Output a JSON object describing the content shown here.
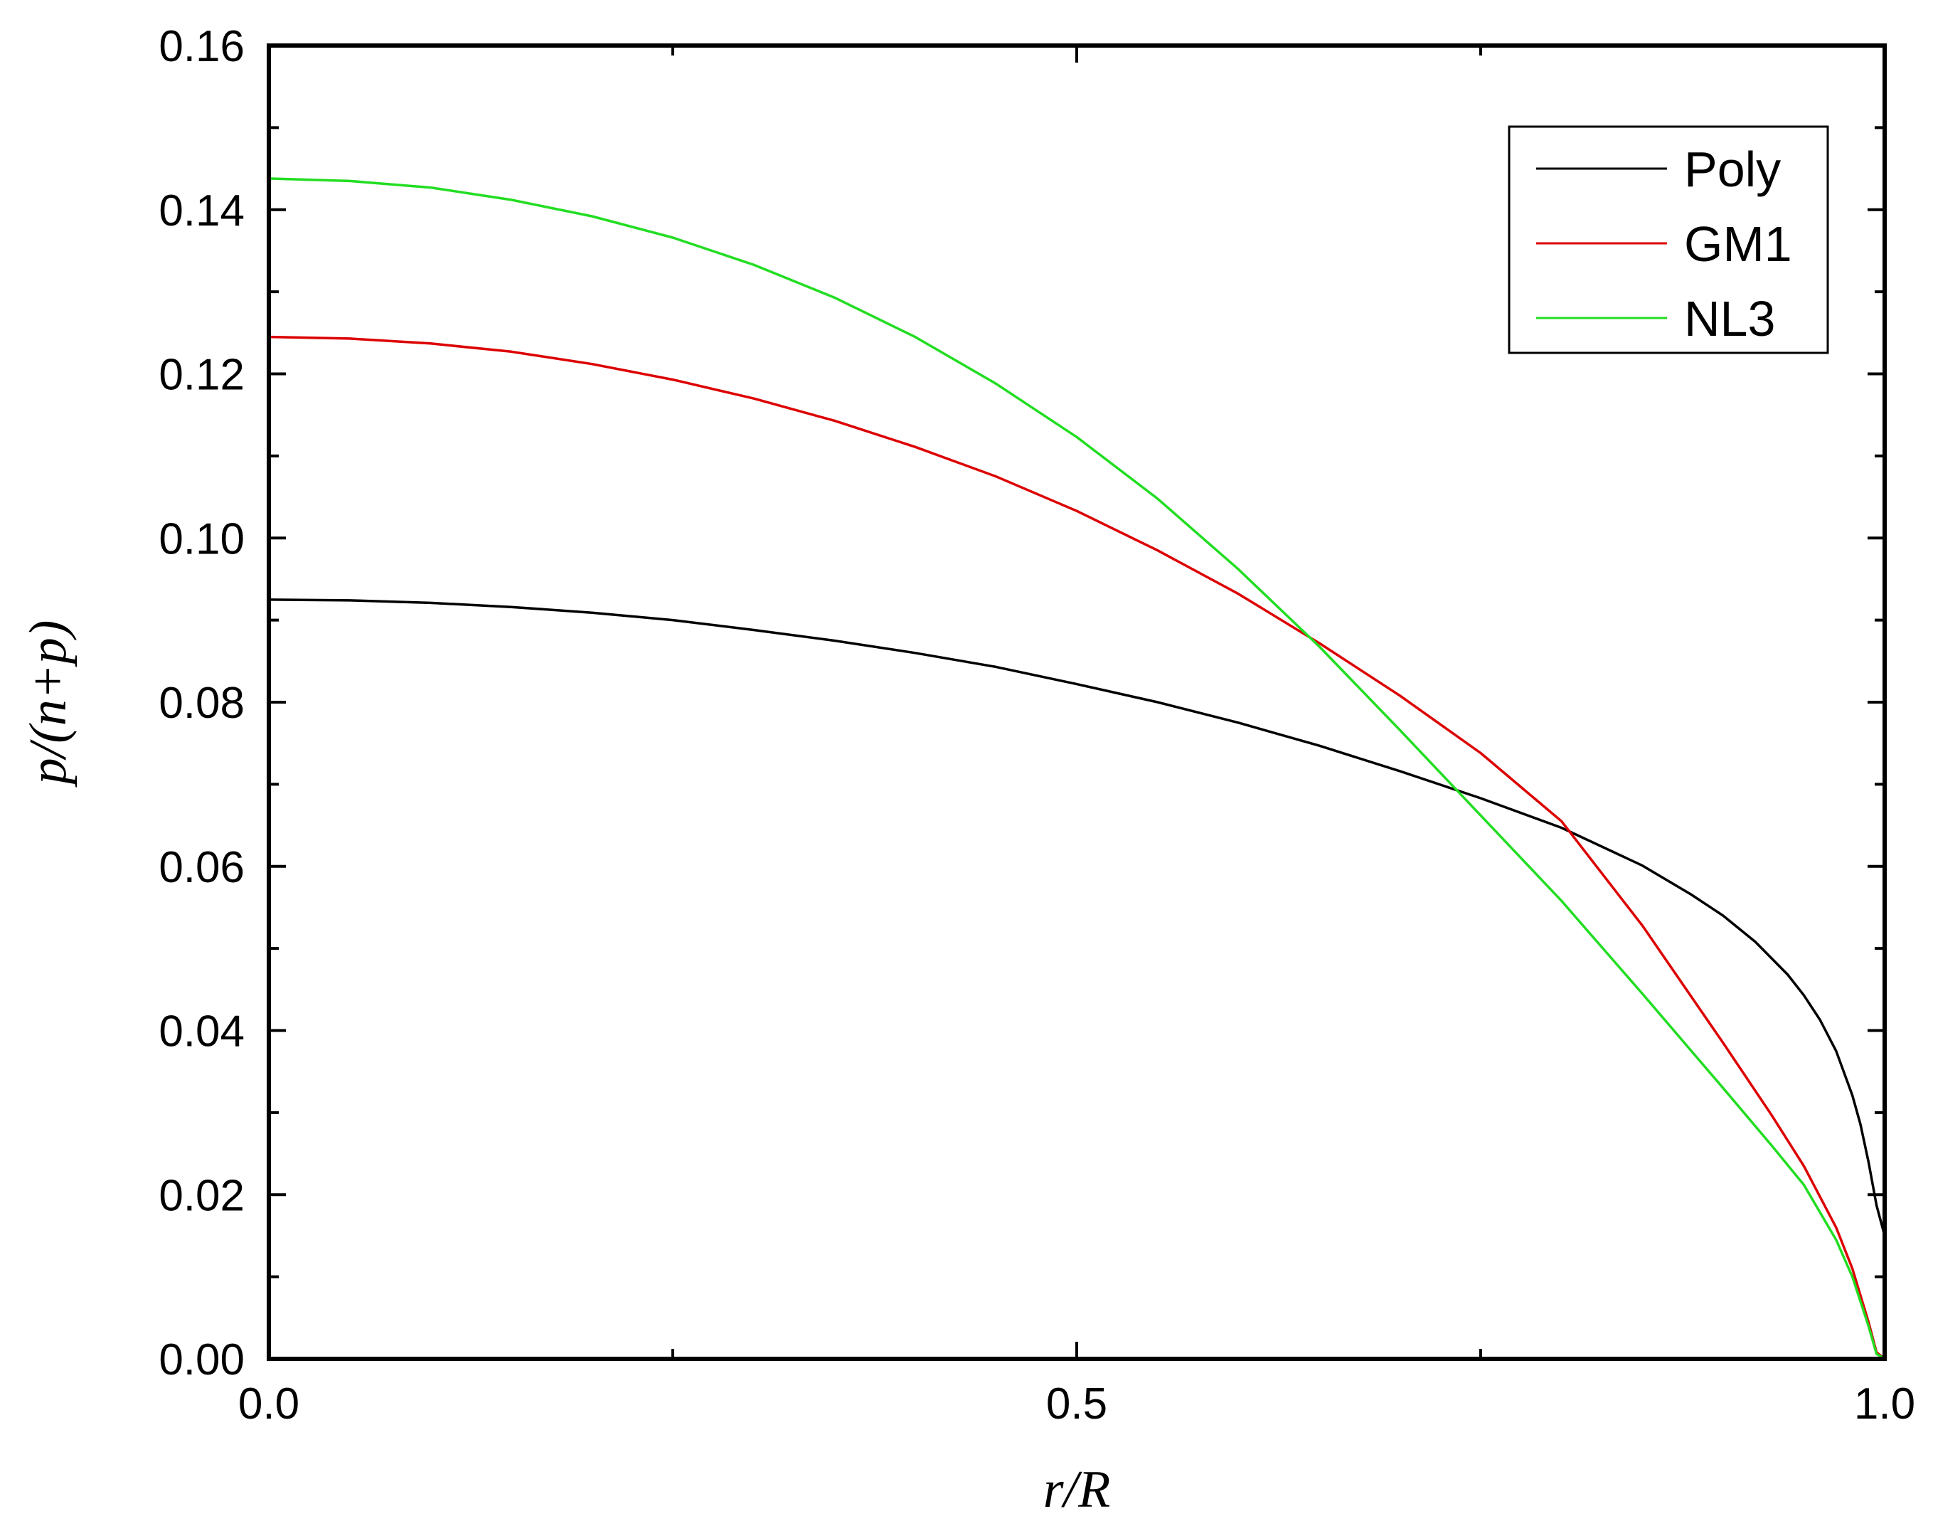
{
  "chart_data": {
    "type": "line",
    "xlabel": "r/R",
    "ylabel": "p/(n+p)",
    "xlim": [
      0.0,
      1.0
    ],
    "ylim": [
      0.0,
      0.16
    ],
    "x_ticks": [
      "0.0",
      "0.5",
      "1.0"
    ],
    "y_ticks": [
      "0.00",
      "0.02",
      "0.04",
      "0.06",
      "0.08",
      "0.10",
      "0.12",
      "0.14",
      "0.16"
    ],
    "legend_position": "top-right",
    "grid": false,
    "series": [
      {
        "name": "Poly",
        "color": "#000000",
        "x": [
          0.0,
          0.05,
          0.1,
          0.15,
          0.2,
          0.25,
          0.3,
          0.35,
          0.4,
          0.45,
          0.5,
          0.55,
          0.6,
          0.65,
          0.7,
          0.75,
          0.8,
          0.85,
          0.88,
          0.9,
          0.92,
          0.94,
          0.95,
          0.96,
          0.97,
          0.98,
          0.985,
          0.99,
          0.995,
          1.0
        ],
        "y": [
          0.0925,
          0.0924,
          0.0921,
          0.0916,
          0.0909,
          0.09,
          0.0888,
          0.0875,
          0.086,
          0.0843,
          0.0822,
          0.08,
          0.0775,
          0.0747,
          0.0716,
          0.0683,
          0.0647,
          0.0601,
          0.0566,
          0.054,
          0.0508,
          0.0468,
          0.0443,
          0.0413,
          0.0375,
          0.0321,
          0.0286,
          0.024,
          0.0187,
          0.015
        ]
      },
      {
        "name": "GM1",
        "color": "#dd0000",
        "x": [
          0.0,
          0.05,
          0.1,
          0.15,
          0.2,
          0.25,
          0.3,
          0.35,
          0.4,
          0.45,
          0.5,
          0.55,
          0.6,
          0.65,
          0.7,
          0.75,
          0.8,
          0.85,
          0.9,
          0.93,
          0.95,
          0.97,
          0.98,
          0.99,
          0.995,
          1.0
        ],
        "y": [
          0.1245,
          0.1243,
          0.1237,
          0.1227,
          0.1212,
          0.1193,
          0.117,
          0.1143,
          0.1111,
          0.1075,
          0.1033,
          0.0985,
          0.0932,
          0.0872,
          0.0808,
          0.0738,
          0.0655,
          0.0528,
          0.0385,
          0.0297,
          0.0235,
          0.016,
          0.011,
          0.0045,
          0.0008,
          0.0
        ]
      },
      {
        "name": "NL3",
        "color": "#22dd22",
        "x": [
          0.0,
          0.05,
          0.1,
          0.15,
          0.2,
          0.25,
          0.3,
          0.35,
          0.4,
          0.45,
          0.5,
          0.55,
          0.6,
          0.65,
          0.7,
          0.75,
          0.8,
          0.85,
          0.9,
          0.93,
          0.95,
          0.97,
          0.98,
          0.99,
          0.995,
          1.0
        ],
        "y": [
          0.1438,
          0.1435,
          0.1427,
          0.1412,
          0.1392,
          0.1366,
          0.1333,
          0.1293,
          0.1245,
          0.1188,
          0.1123,
          0.1048,
          0.0962,
          0.0868,
          0.0766,
          0.0662,
          0.0558,
          0.0445,
          0.033,
          0.026,
          0.0212,
          0.0145,
          0.01,
          0.004,
          0.0006,
          0.0
        ]
      }
    ]
  }
}
